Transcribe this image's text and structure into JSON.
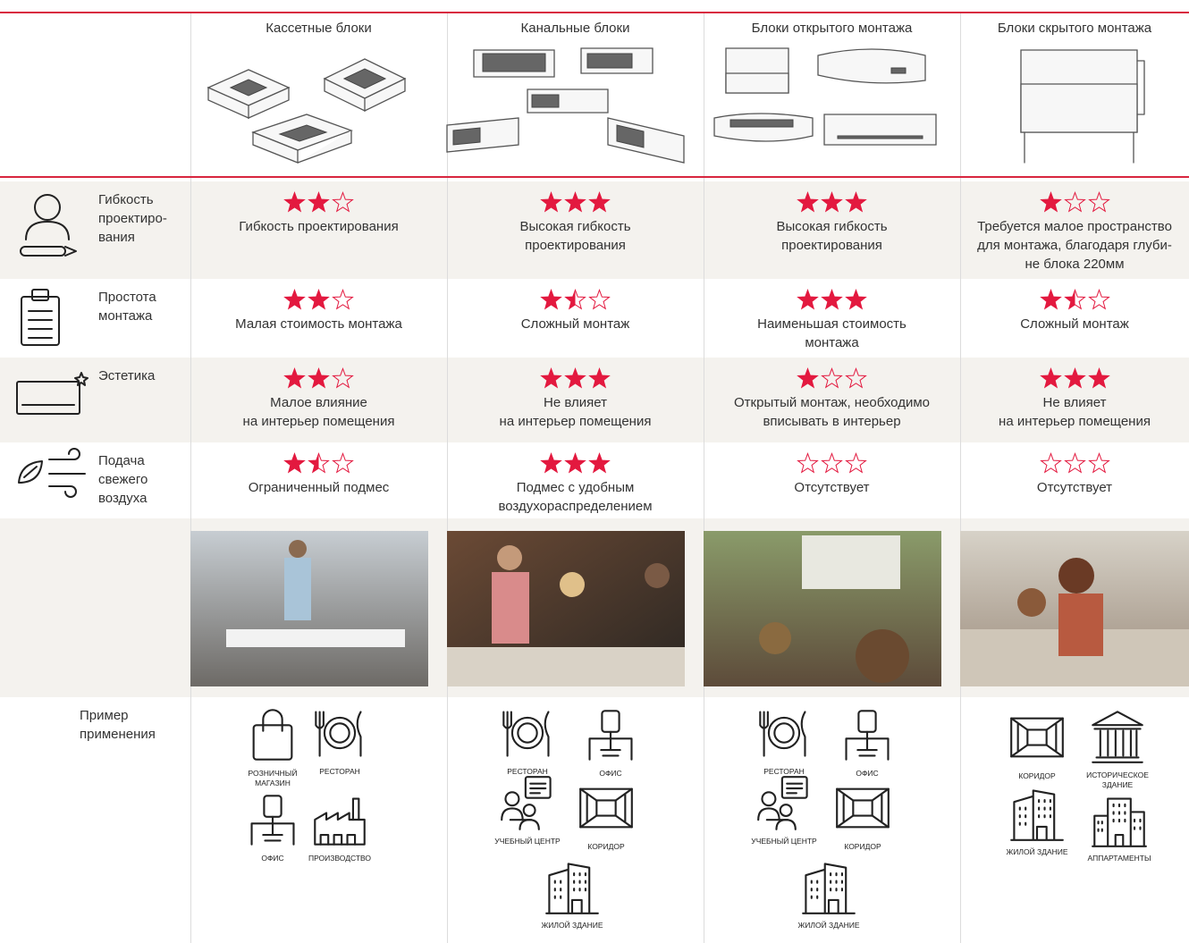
{
  "header": {
    "columns": [
      "Кассетные блоки",
      "Канальные блоки",
      "Блоки открытого монтажа",
      "Блоки скрытого монтажа"
    ]
  },
  "rating_max": 3,
  "criteria": [
    {
      "label": "Гибкость\nпроектиро-\nвания",
      "cells": [
        {
          "rating": 2,
          "text": "Гибкость проектирования"
        },
        {
          "rating": 3,
          "text": "Высокая гибкость\nпроектирования"
        },
        {
          "rating": 3,
          "text": "Высокая гибкость\nпроектирования"
        },
        {
          "rating": 1,
          "text": "Требуется малое пространство\nдля монтажа, благодаря глуби-\nне блока 220мм"
        }
      ]
    },
    {
      "label": "Простота\nмонтажа",
      "cells": [
        {
          "rating": 2,
          "text": "Малая стоимость монтажа"
        },
        {
          "rating": 1.5,
          "text": "Сложный монтаж"
        },
        {
          "rating": 3,
          "text": "Наименьшая стоимость\nмонтажа"
        },
        {
          "rating": 1.5,
          "text": "Сложный монтаж"
        }
      ]
    },
    {
      "label": "Эстетика",
      "cells": [
        {
          "rating": 2,
          "text": "Малое влияние\nна интерьер помещения"
        },
        {
          "rating": 3,
          "text": "Не влияет\nна интерьер помещения"
        },
        {
          "rating": 1,
          "text": "Открытый монтаж, необходимо\nвписывать в интерьер"
        },
        {
          "rating": 3,
          "text": "Не влияет\nна интерьер помещения"
        }
      ]
    },
    {
      "label": "Подача\nсвежего\nвоздуха",
      "cells": [
        {
          "rating": 1.5,
          "text": "Ограниченный подмес"
        },
        {
          "rating": 3,
          "text": "Подмес с удобным\nвоздухораспределением"
        },
        {
          "rating": 0,
          "text": "Отсутствует"
        },
        {
          "rating": 0,
          "text": "Отсутствует"
        }
      ]
    }
  ],
  "example_label": "Пример\nприменения",
  "examples": [
    [
      "РОЗНИЧНЫЙ\nМАГАЗИН",
      "РЕСТОРАН",
      "ОФИС",
      "ПРОИЗВОДСТВО"
    ],
    [
      "РЕСТОРАН",
      "ОФИС",
      "УЧЕБНЫЙ ЦЕНТР",
      "КОРИДОР",
      "ЖИЛОЙ ЗДАНИЕ"
    ],
    [
      "РЕСТОРАН",
      "ОФИС",
      "УЧЕБНЫЙ ЦЕНТР",
      "КОРИДОР",
      "ЖИЛОЙ ЗДАНИЕ"
    ],
    [
      "КОРИДОР",
      "ИСТОРИЧЕСКОЕ\nЗДАНИЕ",
      "ЖИЛОЙ ЗДАНИЕ",
      "АППАРТАМЕНТЫ"
    ]
  ]
}
